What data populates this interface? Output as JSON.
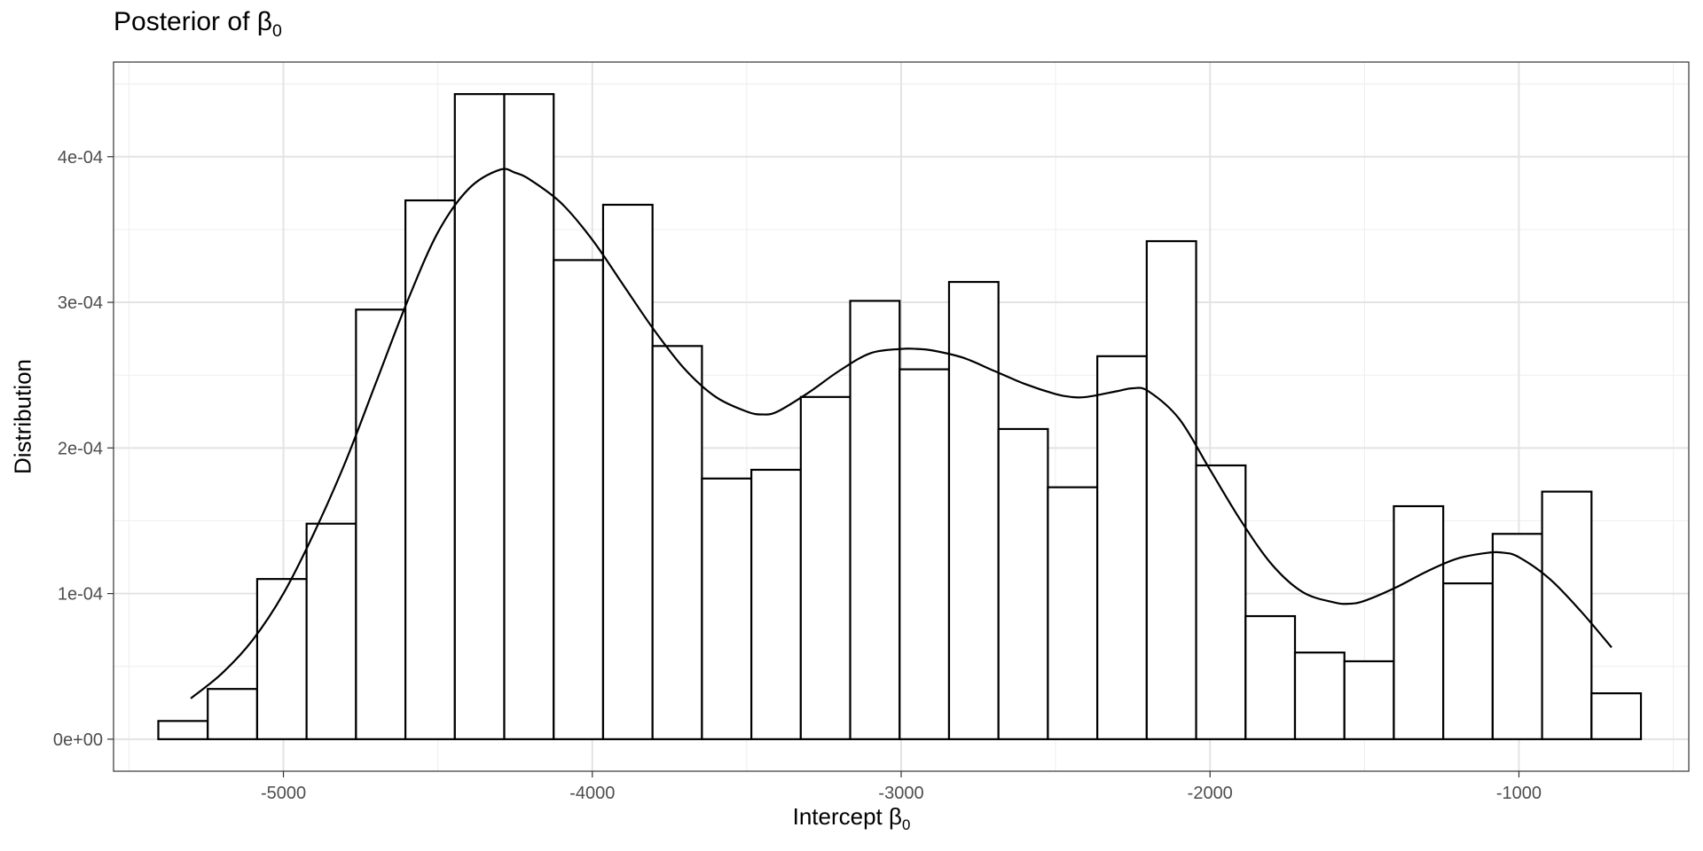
{
  "chart_data": {
    "type": "bar",
    "subtype": "histogram-with-density",
    "title_prefix": "Posterior of ",
    "title_symbol": "β",
    "title_subscript": "0",
    "xlabel_prefix": "Intercept ",
    "xlabel_symbol": "β",
    "xlabel_subscript": "0",
    "ylabel": "Distribution",
    "xlim": [
      -5550,
      -450
    ],
    "ylim": [
      -2.2e-05,
      0.000465
    ],
    "x_ticks": [
      -5000,
      -4000,
      -3000,
      -2000,
      -1000
    ],
    "x_tick_labels": [
      "-5000",
      "-4000",
      "-3000",
      "-2000",
      "-1000"
    ],
    "y_ticks": [
      0,
      0.0001,
      0.0002,
      0.0003,
      0.0004
    ],
    "y_tick_labels": [
      "0e+00",
      "1e-04",
      "2e-04",
      "3e-04",
      "4e-04"
    ],
    "grid": true,
    "bin_width": 160,
    "bins": [
      {
        "x0": -5405,
        "x1": -5245,
        "density": 1.25e-05
      },
      {
        "x0": -5245,
        "x1": -5085,
        "density": 3.45e-05
      },
      {
        "x0": -5085,
        "x1": -4925,
        "density": 0.00011
      },
      {
        "x0": -4925,
        "x1": -4765,
        "density": 0.000148
      },
      {
        "x0": -4765,
        "x1": -4605,
        "density": 0.000295
      },
      {
        "x0": -4605,
        "x1": -4445,
        "density": 0.00037
      },
      {
        "x0": -4445,
        "x1": -4285,
        "density": 0.000443
      },
      {
        "x0": -4285,
        "x1": -4125,
        "density": 0.000443
      },
      {
        "x0": -4125,
        "x1": -3965,
        "density": 0.000329
      },
      {
        "x0": -3965,
        "x1": -3805,
        "density": 0.000367
      },
      {
        "x0": -3805,
        "x1": -3645,
        "density": 0.00027
      },
      {
        "x0": -3645,
        "x1": -3485,
        "density": 0.000179
      },
      {
        "x0": -3485,
        "x1": -3325,
        "density": 0.000185
      },
      {
        "x0": -3325,
        "x1": -3165,
        "density": 0.000235
      },
      {
        "x0": -3165,
        "x1": -3005,
        "density": 0.000301
      },
      {
        "x0": -3005,
        "x1": -2845,
        "density": 0.000254
      },
      {
        "x0": -2845,
        "x1": -2685,
        "density": 0.000314
      },
      {
        "x0": -2685,
        "x1": -2525,
        "density": 0.000213
      },
      {
        "x0": -2525,
        "x1": -2365,
        "density": 0.000173
      },
      {
        "x0": -2365,
        "x1": -2205,
        "density": 0.000263
      },
      {
        "x0": -2205,
        "x1": -2045,
        "density": 0.000342
      },
      {
        "x0": -2045,
        "x1": -1885,
        "density": 0.000188
      },
      {
        "x0": -1885,
        "x1": -1725,
        "density": 8.45e-05
      },
      {
        "x0": -1725,
        "x1": -1565,
        "density": 5.95e-05
      },
      {
        "x0": -1565,
        "x1": -1405,
        "density": 5.35e-05
      },
      {
        "x0": -1405,
        "x1": -1245,
        "density": 0.00016
      },
      {
        "x0": -1245,
        "x1": -1085,
        "density": 0.000107
      },
      {
        "x0": -1085,
        "x1": -925,
        "density": 0.000141
      },
      {
        "x0": -925,
        "x1": -765,
        "density": 0.00017
      },
      {
        "x0": -765,
        "x1": -605,
        "density": 3.15e-05
      }
    ],
    "density_curve": {
      "x": [
        -5300,
        -5200,
        -5100,
        -5000,
        -4900,
        -4800,
        -4700,
        -4600,
        -4500,
        -4400,
        -4300,
        -4250,
        -4200,
        -4100,
        -4000,
        -3900,
        -3800,
        -3700,
        -3600,
        -3500,
        -3450,
        -3400,
        -3300,
        -3200,
        -3100,
        -3000,
        -2950,
        -2900,
        -2800,
        -2700,
        -2600,
        -2500,
        -2450,
        -2400,
        -2300,
        -2250,
        -2200,
        -2100,
        -2000,
        -1900,
        -1800,
        -1700,
        -1600,
        -1550,
        -1500,
        -1400,
        -1300,
        -1200,
        -1100,
        -1050,
        -1000,
        -900,
        -800,
        -700
      ],
      "y": [
        2.8e-05,
        4.5e-05,
        6.8e-05,
        0.0001,
        0.000142,
        0.00019,
        0.000245,
        0.0003,
        0.000348,
        0.000378,
        0.000391,
        0.000389,
        0.000384,
        0.000368,
        0.000343,
        0.000312,
        0.000281,
        0.000254,
        0.000235,
        0.000225,
        0.000223,
        0.000225,
        0.000238,
        0.000253,
        0.000265,
        0.000268,
        0.000268,
        0.000267,
        0.000262,
        0.000253,
        0.000244,
        0.000237,
        0.000235,
        0.000235,
        0.000239,
        0.000241,
        0.000239,
        0.00022,
        0.000185,
        0.00015,
        0.00012,
        0.000101,
        9.4e-05,
        9.3e-05,
        9.5e-05,
        0.000104,
        0.000115,
        0.000124,
        0.000128,
        0.000128,
        0.000125,
        0.00011,
        8.8e-05,
        6.3e-05
      ]
    }
  }
}
